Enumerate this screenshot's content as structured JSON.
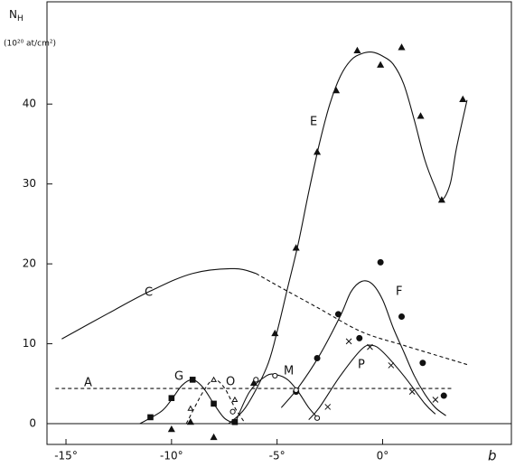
{
  "chart_data": {
    "type": "line",
    "y_label": "N",
    "y_label_sub": "H",
    "y_unit": "(10²⁰ at/cm²)",
    "x_label": "b",
    "xlim": [
      -15.9,
      6.1
    ],
    "ylim": [
      -2.6,
      52.8
    ],
    "xticks": [
      {
        "value": -15,
        "label": "-15°"
      },
      {
        "value": -10,
        "label": "-10°"
      },
      {
        "value": -5,
        "label": "-5°"
      },
      {
        "value": 0,
        "label": "0°"
      }
    ],
    "yticks": [
      0,
      10,
      20,
      30,
      40
    ],
    "color": "#111111",
    "series": [
      {
        "name": "A",
        "dashed": true,
        "x": [
          -15.5,
          3.3
        ],
        "values": [
          4.4,
          4.4
        ]
      },
      {
        "name": "C",
        "dashed": false,
        "x": [
          -15.2,
          -13,
          -11,
          -9,
          -7,
          -6
        ],
        "values": [
          10.6,
          13.8,
          16.6,
          18.8,
          19.4,
          18.8
        ]
      },
      {
        "dashed": true,
        "x": [
          -6,
          -5,
          -3,
          -1,
          1,
          3,
          4
        ],
        "values": [
          18.8,
          17.3,
          14.4,
          11.5,
          9.8,
          8.2,
          7.4
        ]
      },
      {
        "name": "E",
        "dashed": false,
        "x": [
          -7.3,
          -6.5,
          -5.5,
          -5,
          -4.5,
          -4,
          -3.5,
          -3,
          -2.5,
          -2,
          -1.5,
          -1,
          -0.5,
          0,
          0.5,
          1,
          1.5,
          2,
          2.5,
          2.8,
          3.2,
          3.5,
          4
        ],
        "values": [
          0,
          2,
          7,
          11.5,
          17,
          22.5,
          29,
          35,
          40,
          43.5,
          45.5,
          46.3,
          46.5,
          46,
          45,
          42.5,
          38,
          33,
          29.5,
          28,
          30,
          34.5,
          40.5
        ]
      },
      {
        "name": "F",
        "dashed": false,
        "x": [
          -4.8,
          -4,
          -3,
          -2,
          -1.5,
          -1,
          -0.5,
          0,
          0.5,
          1,
          1.5,
          2,
          2.5,
          3
        ],
        "values": [
          2,
          4.5,
          8.5,
          13.5,
          16.5,
          17.8,
          17.5,
          15.5,
          12,
          9,
          6,
          3.7,
          2,
          1
        ]
      },
      {
        "name": "P",
        "dashed": false,
        "x": [
          -3.5,
          -3,
          -2,
          -1,
          -0.5,
          0,
          1,
          2,
          2.5
        ],
        "values": [
          0.5,
          2,
          6,
          9.3,
          9.8,
          9,
          6,
          2.5,
          1.2
        ]
      },
      {
        "name": "M",
        "dashed": false,
        "x": [
          -7,
          -6.3,
          -5.5,
          -5,
          -4.5,
          -4,
          -3.5,
          -3
        ],
        "values": [
          0,
          4,
          6,
          6.1,
          5.5,
          4,
          2,
          0.5
        ]
      },
      {
        "name": "G",
        "dashed": false,
        "x": [
          -11.5,
          -10.5,
          -10,
          -9.5,
          -9,
          -8.5,
          -8,
          -7.5,
          -7
        ],
        "values": [
          0,
          1.5,
          3,
          4.8,
          5.5,
          4.5,
          2.5,
          0.7,
          0
        ]
      },
      {
        "name": "O",
        "dashed": true,
        "x": [
          -9.3,
          -8.5,
          -8,
          -7.5,
          -7,
          -6.5
        ],
        "values": [
          0,
          4,
          5.5,
          4.5,
          2,
          0
        ]
      }
    ],
    "markers": [
      {
        "marker": "triangle",
        "x": [
          -10,
          -9.1,
          -8,
          -6.1,
          -5.1,
          -4.1,
          -3.1,
          -2.2,
          -1.2,
          -0.1,
          0.9,
          1.8,
          2.8,
          3.8
        ],
        "values": [
          -0.7,
          0.2,
          -1.7,
          5.1,
          11.3,
          22,
          34,
          41.7,
          46.7,
          44.9,
          47.1,
          38.5,
          28,
          40.6
        ]
      },
      {
        "marker": "circle",
        "x": [
          -0.1,
          -2.1,
          -3.1,
          -4.1,
          -1.1,
          0.9,
          1.9,
          2.9
        ],
        "values": [
          20.2,
          13.7,
          8.2,
          4,
          10.7,
          13.4,
          7.6,
          3.5
        ]
      },
      {
        "marker": "cross",
        "x": [
          -1.6,
          -0.6,
          0.4,
          1.4,
          2.5,
          -2.6
        ],
        "values": [
          10.3,
          9.6,
          7.3,
          4,
          3,
          2.1
        ]
      },
      {
        "marker": "open-circle",
        "x": [
          -6,
          -5.1,
          -4.1,
          -3.1,
          -7.1
        ],
        "values": [
          5.5,
          6,
          4.2,
          0.7,
          1.5
        ]
      },
      {
        "marker": "square",
        "x": [
          -11,
          -10,
          -9,
          -8,
          -7
        ],
        "values": [
          0.8,
          3.2,
          5.5,
          2.5,
          0.2
        ]
      },
      {
        "marker": "open-triangle",
        "x": [
          -9.1,
          -8,
          -7
        ],
        "values": [
          1.9,
          5.5,
          3
        ]
      }
    ]
  }
}
